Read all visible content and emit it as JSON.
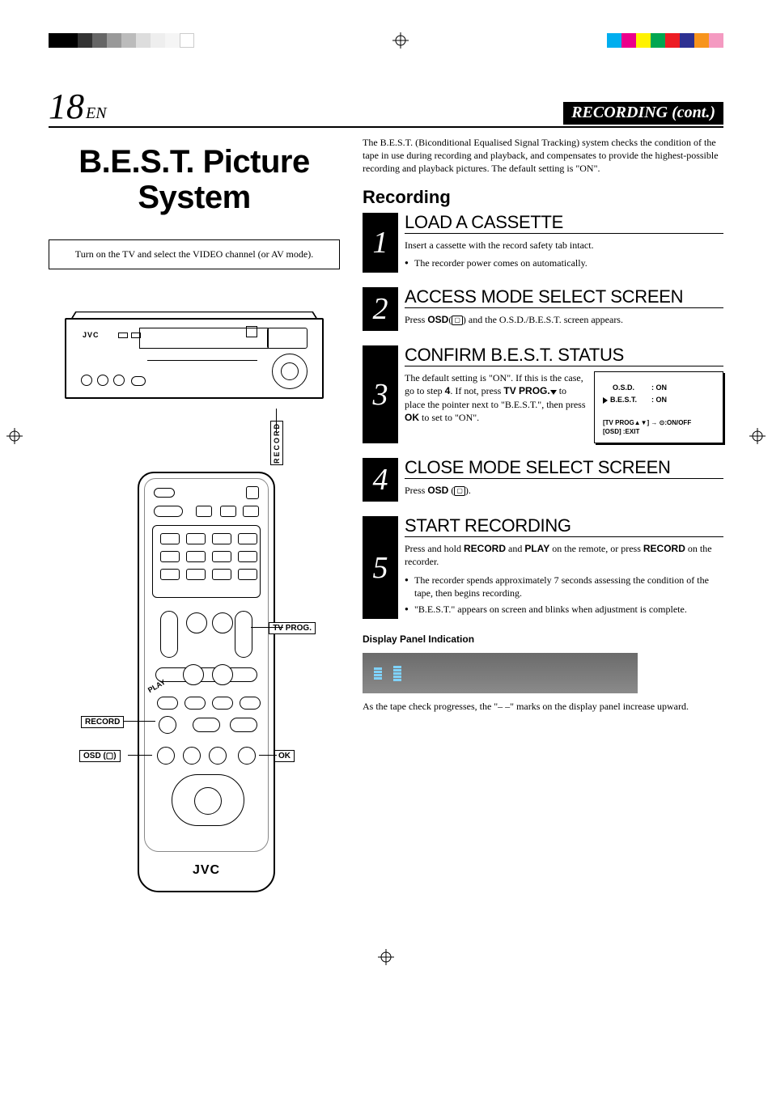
{
  "registration": {
    "bw_shades": [
      "#000000",
      "#000000",
      "#333333",
      "#666666",
      "#999999",
      "#bbbbbb",
      "#dddddd",
      "#eeeeee",
      "#f5f5f5",
      "#ffffff"
    ],
    "color_swatches": [
      "#00aeef",
      "#ec008c",
      "#fff200",
      "#00a651",
      "#ed1c24",
      "#2e3192",
      "#f7941d",
      "#f49ac1"
    ]
  },
  "header": {
    "page_number": "18",
    "page_lang": "EN",
    "section": "RECORDING (cont.)"
  },
  "left": {
    "main_title": "B.E.S.T. Picture System",
    "instruction_box": "Turn on the TV and select the VIDEO channel (or AV mode).",
    "vcr": {
      "logo": "JVC",
      "record_label": "RECORD"
    },
    "remote": {
      "logo": "JVC",
      "play_label": "PLAY",
      "callouts": {
        "tvprog": "TV PROG.",
        "record": "RECORD",
        "ok": "OK",
        "osd": "OSD (▢)"
      }
    }
  },
  "right": {
    "intro": "The B.E.S.T. (Biconditional Equalised Signal Tracking) system checks the condition of the tape in use during recording and playback, and compensates to provide the highest-possible recording and playback pictures. The default setting is \"ON\".",
    "sub_head": "Recording",
    "steps": [
      {
        "num": "1",
        "title": "LOAD A CASSETTE",
        "text": "Insert a cassette with the record safety tab intact.",
        "bullets": [
          "The recorder power comes on automatically."
        ]
      },
      {
        "num": "2",
        "title": "ACCESS MODE SELECT SCREEN",
        "text_html": "Press <b>OSD</b>(<span class='osd-icon'>▢</span>) and the O.S.D./B.E.S.T. screen appears."
      },
      {
        "num": "3",
        "title": "CONFIRM B.E.S.T. STATUS",
        "text_html": "The default setting is \"ON\". If this is the case, go to step <b>4</b>. If not, press <b>TV PROG.</b><span class='tri-dn'></span> to place the pointer next to \"B.E.S.T.\", then press <b>OK</b> to set to \"ON\".",
        "osd": {
          "row1_k": "O.S.D.",
          "row1_v": ": ON",
          "row2_k": "B.E.S.T.",
          "row2_v": ": ON",
          "hint1": "[TV PROG▲▼] → ⊙:ON/OFF",
          "hint2": "[OSD] :EXIT"
        }
      },
      {
        "num": "4",
        "title": "CLOSE MODE SELECT SCREEN",
        "text_html": "Press <b>OSD</b> (<span class='osd-icon'>▢</span>)."
      },
      {
        "num": "5",
        "title": "START RECORDING",
        "text_html": "Press and hold <b>RECORD</b> and <b>PLAY</b> on the remote, or press <b>RECORD</b> on the recorder.",
        "bullets": [
          "The recorder spends approximately 7 seconds assessing the condition of the tape, then begins recording.",
          "\"B.E.S.T.\" appears on screen and blinks when adjustment is complete."
        ]
      }
    ],
    "display_panel": {
      "title": "Display Panel Indication",
      "bar_heights": [
        [
          2,
          3,
          4,
          5
        ],
        [
          2,
          3,
          4,
          5,
          6
        ]
      ],
      "bar_color": "#7fd3ff",
      "bg_gradient": [
        "#6b6b6b",
        "#8a8a8a"
      ],
      "caption": "As the tape check progresses, the \"– –\" marks on the display panel increase upward."
    }
  }
}
